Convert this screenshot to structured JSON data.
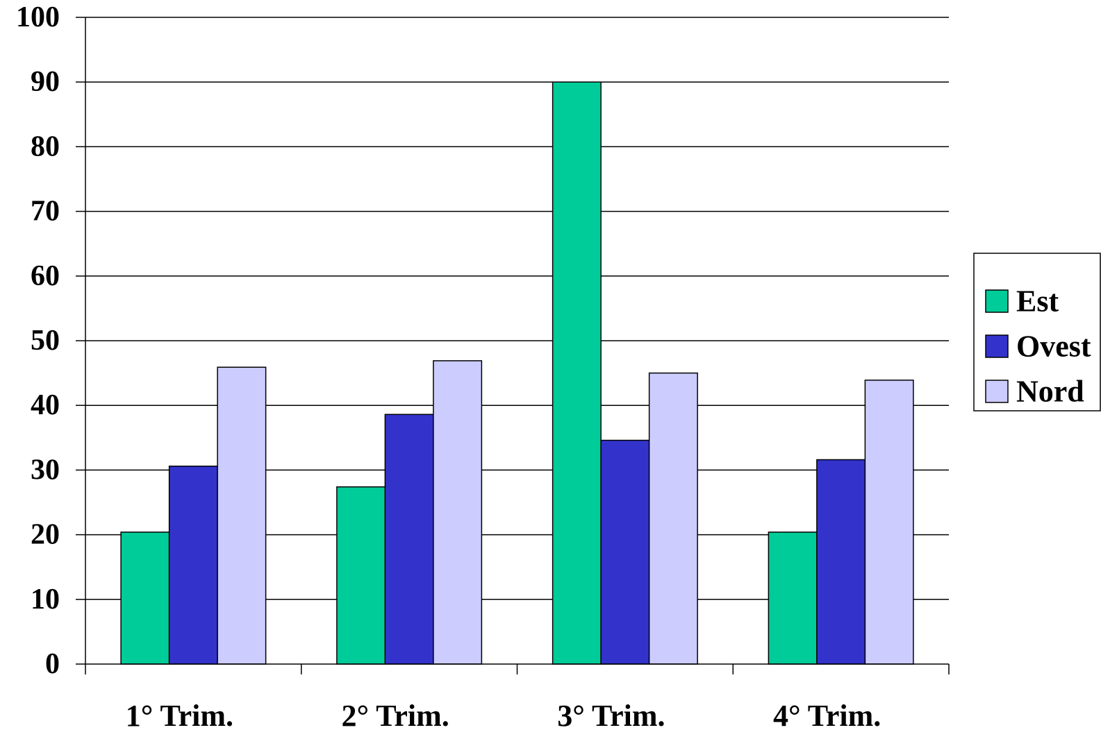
{
  "chart_data": {
    "type": "bar",
    "title": "",
    "xlabel": "",
    "ylabel": "",
    "categories": [
      "1° Trim.",
      "2° Trim.",
      "3° Trim.",
      "4° Trim."
    ],
    "series": [
      {
        "name": "Est",
        "color": "#00CC99",
        "values": [
          20.4,
          27.4,
          90,
          20.4
        ]
      },
      {
        "name": "Ovest",
        "color": "#3333CC",
        "values": [
          30.6,
          38.6,
          34.6,
          31.6
        ]
      },
      {
        "name": "Nord",
        "color": "#CCCCFF",
        "values": [
          45.9,
          46.9,
          45,
          43.9
        ]
      }
    ],
    "ylim": [
      0,
      100
    ],
    "yticks": [
      "0",
      "10",
      "20",
      "30",
      "40",
      "50",
      "60",
      "70",
      "80",
      "90",
      "100"
    ],
    "grid": true,
    "legend_position": "right"
  }
}
